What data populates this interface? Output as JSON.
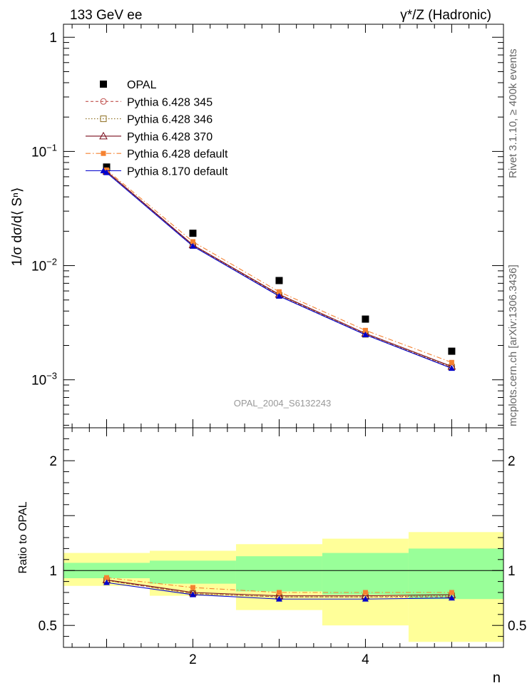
{
  "header": {
    "energy_label": "133 GeV ee",
    "process_label": "γ*/Z (Hadronic)"
  },
  "side": {
    "rivet_label": "Rivet 3.1.10, ≥ 400k events",
    "source_label": "mcplots.cern.ch [arXiv:1306.3436]"
  },
  "watermark": "OPAL_2004_S6132243",
  "chart_data": [
    {
      "type": "scatter",
      "panel": "main",
      "ylabel": "1/σ dσ/d⟨ Sⁿ⟩",
      "yscale": "log",
      "xlim": [
        0.5,
        5.6
      ],
      "ylim": [
        0.00038,
        1.3
      ],
      "y_tick_labels": [
        "1",
        "10⁻¹",
        "10⁻²",
        "10⁻³"
      ],
      "legend_position": "top-left",
      "x": [
        1,
        2,
        3,
        4,
        5
      ],
      "series": [
        {
          "name": "OPAL",
          "marker": "filled-square",
          "color": "#000000",
          "values": [
            0.073,
            0.0192,
            0.0074,
            0.0034,
            0.00178
          ]
        },
        {
          "name": "Pythia 6.428 345",
          "marker": "open-circle",
          "line": "dashed",
          "color": "#c0504d",
          "values": [
            0.0665,
            0.0151,
            0.0055,
            0.0025,
            0.00128
          ]
        },
        {
          "name": "Pythia 6.428 346",
          "marker": "open-square",
          "line": "dotted",
          "color": "#8c6d1f",
          "values": [
            0.0665,
            0.015,
            0.0055,
            0.0025,
            0.00129
          ]
        },
        {
          "name": "Pythia 6.428 370",
          "marker": "open-triangle",
          "line": "solid",
          "color": "#7a0e1c",
          "values": [
            0.067,
            0.0152,
            0.0056,
            0.00255,
            0.00131
          ]
        },
        {
          "name": "Pythia 6.428 default",
          "marker": "filled-square-small",
          "line": "dashdot",
          "color": "#f58231",
          "values": [
            0.0688,
            0.0162,
            0.0059,
            0.00271,
            0.00142
          ]
        },
        {
          "name": "Pythia 8.170 default",
          "marker": "filled-triangle",
          "line": "solid",
          "color": "#0000cc",
          "values": [
            0.0652,
            0.0148,
            0.0054,
            0.00248,
            0.00126
          ]
        }
      ]
    },
    {
      "type": "scatter",
      "panel": "ratio",
      "xlabel": "n",
      "ylabel": "Ratio to OPAL",
      "xlim": [
        0.5,
        5.6
      ],
      "ylim": [
        0.3,
        2.3
      ],
      "x_ticks": [
        2,
        4
      ],
      "y_ticks": [
        0.5,
        1,
        2
      ],
      "reference_line": 1,
      "bands": {
        "bin_edges": [
          0.5,
          1.5,
          2.5,
          3.5,
          4.5,
          5.6
        ],
        "yellow": [
          [
            0.86,
            1.16
          ],
          [
            0.77,
            1.18
          ],
          [
            0.64,
            1.24
          ],
          [
            0.5,
            1.29
          ],
          [
            0.35,
            1.35
          ]
        ],
        "green": [
          [
            0.93,
            1.07
          ],
          [
            0.88,
            1.09
          ],
          [
            0.81,
            1.13
          ],
          [
            0.78,
            1.16
          ],
          [
            0.74,
            1.2
          ]
        ]
      },
      "x": [
        1,
        2,
        3,
        4,
        5
      ],
      "series": [
        {
          "name": "Pythia 6.428 345",
          "color": "#c0504d",
          "values": [
            0.91,
            0.79,
            0.76,
            0.76,
            0.76
          ]
        },
        {
          "name": "Pythia 6.428 346",
          "color": "#8c6d1f",
          "values": [
            0.91,
            0.79,
            0.76,
            0.76,
            0.77
          ]
        },
        {
          "name": "Pythia 6.428 370",
          "color": "#7a0e1c",
          "values": [
            0.915,
            0.8,
            0.77,
            0.77,
            0.78
          ]
        },
        {
          "name": "Pythia 6.428 default",
          "color": "#f58231",
          "values": [
            0.935,
            0.845,
            0.8,
            0.8,
            0.8
          ]
        },
        {
          "name": "Pythia 8.170 default",
          "color": "#0000cc",
          "values": [
            0.89,
            0.78,
            0.74,
            0.74,
            0.75
          ]
        }
      ]
    }
  ]
}
